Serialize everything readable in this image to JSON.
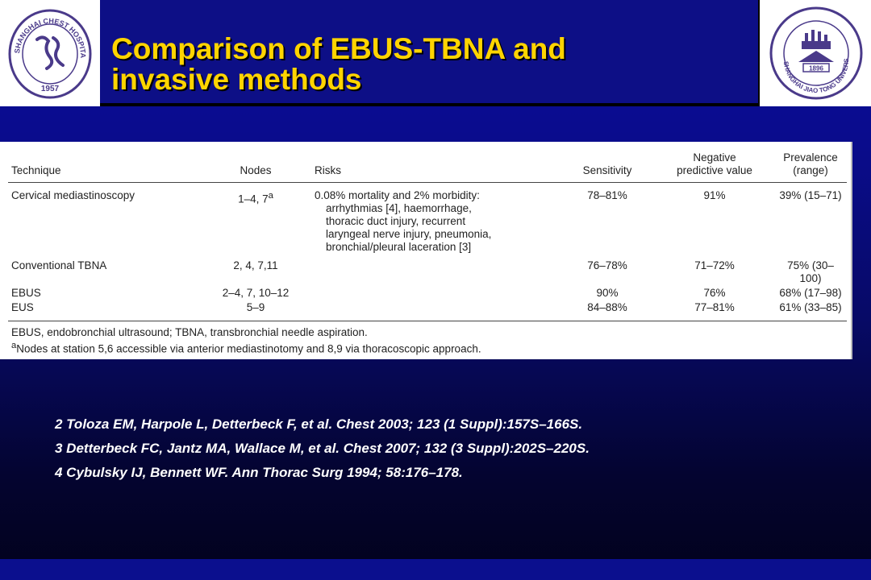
{
  "header": {
    "title_line1": "Comparison of EBUS-TBNA and",
    "title_line2": "invasive methods",
    "left_logo": {
      "icon": "shanghai-chest-hospital-seal-icon",
      "text": "SHANGHAI CHEST HOSPITAL",
      "year": "1957"
    },
    "right_logo": {
      "icon": "shanghai-jiao-tong-university-seal-icon",
      "text": "SHANGHAI JIAO TONG UNIVERSITY",
      "year": "1896"
    }
  },
  "table": {
    "headers": {
      "technique": "Technique",
      "nodes": "Nodes",
      "risks": "Risks",
      "sensitivity": "Sensitivity",
      "npv_line1": "Negative",
      "npv_line2": "predictive value",
      "prevalence": "Prevalence (range)"
    },
    "rows": [
      {
        "technique": "Cervical mediastinoscopy",
        "nodes": "1–4, 7",
        "nodes_sup": "a",
        "risks_lines": [
          "0.08% mortality and 2% morbidity:",
          "arrhythmias [4], haemorrhage,",
          "thoracic duct injury, recurrent",
          "laryngeal nerve injury, pneumonia,",
          "bronchial/pleural laceration [3]"
        ],
        "sensitivity": "78–81%",
        "npv": "91%",
        "prevalence": "39% (15–71)"
      },
      {
        "technique": "Conventional TBNA",
        "nodes": "2, 4, 7,11",
        "sensitivity": "76–78%",
        "npv": "71–72%",
        "prevalence": "75% (30–100)"
      },
      {
        "technique": "EBUS",
        "nodes": "2–4, 7, 10–12",
        "sensitivity": "90%",
        "npv": "76%",
        "prevalence": "68% (17–98)"
      },
      {
        "technique": "EUS",
        "nodes": "5–9",
        "sensitivity": "84–88%",
        "npv": "77–81%",
        "prevalence": "61% (33–85)"
      }
    ],
    "footnote1": "EBUS, endobronchial ultrasound; TBNA, transbronchial needle aspiration.",
    "footnote2_sup": "a",
    "footnote2": "Nodes at station 5,6 accessible via anterior mediastinotomy and 8,9 via thoracoscopic approach."
  },
  "references": [
    "2 Toloza EM, Harpole L, Detterbeck F, et al. Chest 2003; 123 (1 Suppl):157S–166S.",
    "3 Detterbeck FC, Jantz MA, Wallace M, et al. Chest 2007; 132 (3 Suppl):202S–220S.",
    "4 Cybulsky IJ, Bennett WF. Ann Thorac Surg 1994; 58:176–178."
  ],
  "colors": {
    "background": "#0a0c8c",
    "title": "#ffd400",
    "reference_text": "#ffffff",
    "seal_purple": "#4a3a8a"
  }
}
